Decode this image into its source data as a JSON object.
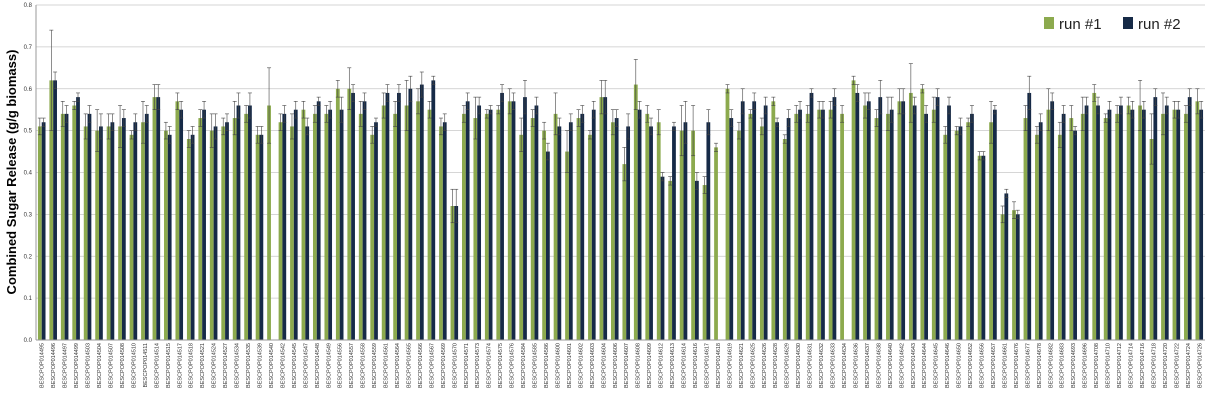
{
  "chart_data": {
    "type": "bar",
    "title": "",
    "xlabel": "",
    "ylabel": "Combined Sugar Release (g/g biomass)",
    "ylim": [
      0,
      0.8
    ],
    "yticks": [
      "0.0",
      "0.1",
      "0.2",
      "0.3",
      "0.4",
      "0.5",
      "0.6",
      "0.7",
      "0.8"
    ],
    "grid": true,
    "legend": "top-right",
    "colors": {
      "run1": "#8caa4e",
      "run2": "#162a47",
      "grid": "#c8c8c8",
      "error": "#444444"
    },
    "categories": [
      "BESCPOP014495",
      "BESCPOP014496",
      "BESCPOP014497",
      "BESCPOP014499",
      "BESCPOP014503",
      "BESCPOP014504",
      "BESCPOP014507",
      "BESCPOP014508",
      "BESCPOP014510",
      "BESCPOP014511",
      "BESCPOP014514",
      "BESCPOP014515",
      "BESCPOP014517",
      "BESCPOP014518",
      "BESCPOP014521",
      "BESCPOP014524",
      "BESCPOP014527",
      "BESCPOP014534",
      "BESCPOP014535",
      "BESCPOP014539",
      "BESCPOP014540",
      "BESCPOP014542",
      "BESCPOP014545",
      "BESCPOP014547",
      "BESCPOP014548",
      "BESCPOP014549",
      "BESCPOP014556",
      "BESCPOP014557",
      "BESCPOP014558",
      "BESCPOP014559",
      "BESCPOP014561",
      "BESCPOP014564",
      "BESCPOP014565",
      "BESCPOP014566",
      "BESCPOP014567",
      "BESCPOP014569",
      "BESCPOP014570",
      "BESCPOP014571",
      "BESCPOP014573",
      "BESCPOP014574",
      "BESCPOP014575",
      "BESCPOP014576",
      "BESCPOP014584",
      "BESCPOP014585",
      "BESCPOP014586",
      "BESCPOP014600",
      "BESCPOP014601",
      "BESCPOP014602",
      "BESCPOP014603",
      "BESCPOP014604",
      "BESCPOP014606",
      "BESCPOP014607",
      "BESCPOP014608",
      "BESCPOP014609",
      "BESCPOP014612",
      "BESCPOP014613",
      "BESCPOP014614",
      "BESCPOP014616",
      "BESCPOP014617",
      "BESCPOP014618",
      "BESCPOP014619",
      "BESCPOP014621",
      "BESCPOP014625",
      "BESCPOP014626",
      "BESCPOP014628",
      "BESCPOP014629",
      "BESCPOP014630",
      "BESCPOP014631",
      "BESCPOP014632",
      "BESCPOP014633",
      "BESCPOP014634",
      "BESCPOP014636",
      "BESCPOP014637",
      "BESCPOP014638",
      "BESCPOP014640",
      "BESCPOP014642",
      "BESCPOP014643",
      "BESCPOP014644",
      "BESCPOP014645",
      "BESCPOP014646",
      "BESCPOP014650",
      "BESCPOP014652",
      "BESCPOP014656",
      "BESCPOP014657",
      "BESCPOP014661",
      "BESCPOP014676",
      "BESCPOP014677",
      "BESCPOP014678",
      "BESCPOP014682",
      "BESCPOP014683",
      "BESCPOP014693",
      "BESCPOP014696",
      "BESCPOP014708",
      "BESCPOP014710",
      "BESCPOP014712",
      "BESCPOP014714",
      "BESCPOP014716",
      "BESCPOP014718",
      "BESCPOP014720",
      "BESCPOP014722",
      "BESCPOP014724",
      "BESCPOP014726"
    ],
    "series": [
      {
        "name": "run #1",
        "values": [
          0.51,
          0.62,
          0.54,
          0.56,
          0.51,
          0.5,
          0.51,
          0.51,
          0.49,
          0.52,
          0.58,
          0.5,
          0.57,
          0.48,
          0.53,
          0.5,
          0.51,
          0.53,
          0.54,
          0.49,
          0.56,
          0.52,
          0.51,
          0.55,
          0.54,
          0.54,
          0.6,
          0.6,
          0.54,
          0.49,
          0.56,
          0.54,
          0.56,
          0.57,
          0.55,
          0.51,
          0.32,
          0.54,
          0.53,
          0.54,
          0.55,
          0.57,
          0.49,
          0.53,
          0.5,
          0.54,
          0.45,
          0.53,
          0.49,
          0.58,
          0.52,
          0.42,
          0.61,
          0.54,
          0.52,
          0.38,
          0.5,
          0.5,
          0.37,
          0.46,
          0.6,
          0.5,
          0.54,
          0.51,
          0.57,
          0.48,
          0.54,
          0.54,
          0.55,
          0.55,
          0.54,
          0.62,
          0.56,
          0.53,
          0.54,
          0.57,
          0.59,
          0.6,
          0.55,
          0.49,
          0.5,
          0.52,
          0.44,
          0.52,
          0.3,
          0.31,
          0.53,
          0.49,
          0.55,
          0.49,
          0.53,
          0.54,
          0.59,
          0.53,
          0.54,
          0.56,
          0.56,
          0.48,
          0.54,
          0.55,
          0.54,
          0.57
        ],
        "errors": [
          0.02,
          0.12,
          0.03,
          0.01,
          0.03,
          0.05,
          0.03,
          0.05,
          0.01,
          0.05,
          0.03,
          0.02,
          0.02,
          0.02,
          0.02,
          0.04,
          0.02,
          0.04,
          0.02,
          0.02,
          0.09,
          0.02,
          0.03,
          0.02,
          0.02,
          0.02,
          0.02,
          0.05,
          0.03,
          0.02,
          0.03,
          0.03,
          0.06,
          0.03,
          0.02,
          0.02,
          0.04,
          0.02,
          0.05,
          0.01,
          0.01,
          0.03,
          0.04,
          0.02,
          0.02,
          0.05,
          0.05,
          0.02,
          0.01,
          0.04,
          0.03,
          0.04,
          0.06,
          0.02,
          0.03,
          0.01,
          0.06,
          0.06,
          0.02,
          0.01,
          0.01,
          0.02,
          0.01,
          0.02,
          0.01,
          0.01,
          0.02,
          0.02,
          0.02,
          0.02,
          0.02,
          0.01,
          0.03,
          0.02,
          0.04,
          0.03,
          0.07,
          0.01,
          0.03,
          0.02,
          0.01,
          0.01,
          0.01,
          0.05,
          0.02,
          0.02,
          0.03,
          0.02,
          0.05,
          0.03,
          0.03,
          0.04,
          0.02,
          0.01,
          0.02,
          0.02,
          0.06,
          0.06,
          0.05,
          0.02,
          0.02,
          0.03
        ]
      },
      {
        "name": "run #2",
        "values": [
          0.52,
          0.62,
          0.54,
          0.58,
          0.54,
          0.51,
          0.52,
          0.53,
          0.52,
          0.54,
          0.58,
          0.49,
          0.55,
          0.49,
          0.55,
          0.51,
          0.52,
          0.56,
          0.56,
          0.49,
          null,
          0.54,
          0.55,
          0.51,
          0.57,
          0.55,
          0.55,
          0.59,
          0.57,
          0.52,
          0.59,
          0.59,
          0.6,
          0.61,
          0.62,
          0.52,
          0.32,
          0.57,
          0.56,
          0.55,
          0.59,
          0.57,
          0.58,
          0.56,
          0.45,
          0.51,
          0.52,
          0.54,
          0.55,
          0.58,
          0.53,
          0.51,
          0.55,
          0.51,
          0.39,
          0.51,
          0.52,
          0.38,
          0.52,
          null,
          0.53,
          0.57,
          0.57,
          0.56,
          0.52,
          0.53,
          0.55,
          0.59,
          0.55,
          0.58,
          null,
          0.59,
          0.57,
          0.58,
          0.55,
          0.57,
          0.56,
          0.54,
          0.58,
          0.56,
          0.51,
          0.54,
          0.44,
          0.55,
          0.35,
          0.3,
          0.59,
          0.52,
          0.57,
          0.54,
          0.5,
          0.56,
          0.56,
          0.55,
          0.56,
          0.55,
          0.55,
          0.58,
          0.56,
          0.55,
          0.58,
          0.55
        ],
        "errors": [
          0.01,
          0.02,
          0.02,
          0.01,
          0.02,
          0.03,
          0.02,
          0.02,
          0.02,
          0.02,
          0.03,
          0.02,
          0.02,
          0.02,
          0.02,
          0.03,
          0.02,
          0.03,
          0.03,
          0.02,
          null,
          0.02,
          0.02,
          0.02,
          0.01,
          0.02,
          0.03,
          0.02,
          0.02,
          0.01,
          0.02,
          0.02,
          0.03,
          0.03,
          0.01,
          0.02,
          0.04,
          0.02,
          0.02,
          0.01,
          0.02,
          0.02,
          0.04,
          0.02,
          0.02,
          0.02,
          0.02,
          0.02,
          0.02,
          0.04,
          0.02,
          0.03,
          0.02,
          0.02,
          0.01,
          0.01,
          0.05,
          0.02,
          0.03,
          null,
          0.02,
          0.03,
          0.02,
          0.02,
          0.01,
          0.02,
          0.02,
          0.01,
          0.02,
          0.02,
          null,
          0.02,
          0.02,
          0.04,
          0.03,
          0.03,
          0.02,
          0.02,
          0.02,
          0.02,
          0.02,
          0.02,
          0.01,
          0.01,
          0.01,
          0.01,
          0.04,
          0.02,
          0.02,
          0.02,
          0.01,
          0.02,
          0.02,
          0.02,
          0.02,
          0.02,
          0.02,
          0.02,
          0.02,
          0.02,
          0.02,
          0.02
        ]
      }
    ]
  }
}
